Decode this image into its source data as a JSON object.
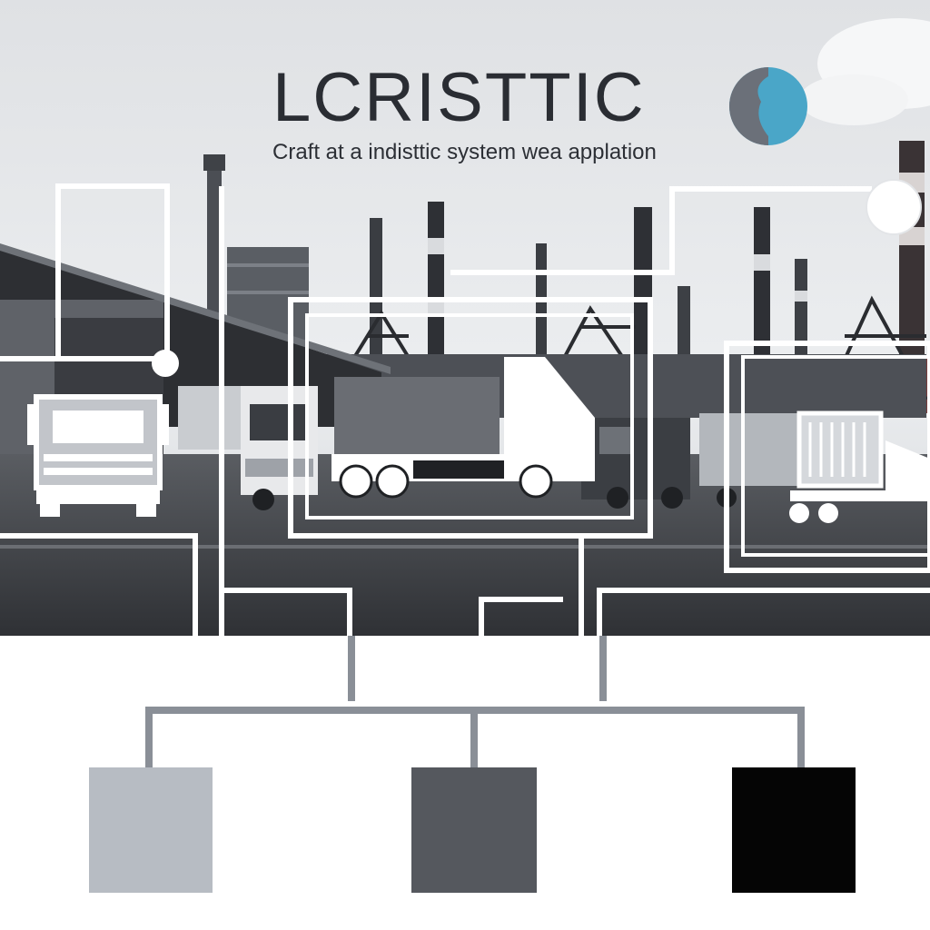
{
  "header": {
    "title": "LCRISTTIC",
    "subtitle": "Craft at a indisttic system wea applation"
  },
  "colors": {
    "sky": "#e3e5e8",
    "ground": "#3d3f44",
    "connector": "#8a8f97",
    "swatch_light": "#b7bcc3",
    "swatch_mid": "#55585e",
    "swatch_dark": "#050505",
    "logo_blue": "#4aa6c8",
    "logo_gray": "#6b7079"
  },
  "icons": [
    "logo-mark-icon",
    "node-circle-icon",
    "truck-front-icon",
    "truck-side-icon",
    "container-truck-icon"
  ]
}
